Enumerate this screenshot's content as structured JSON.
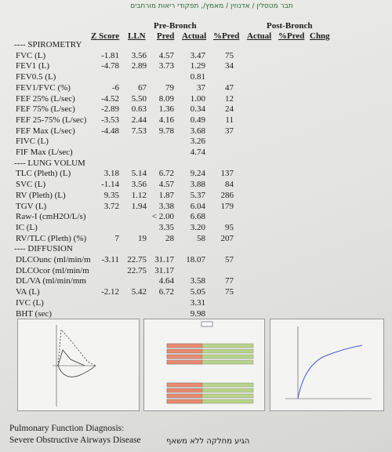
{
  "header": {
    "hebrew": "תבר מטסלין / אדנוזין / מאמץ/, תפקודי ריאות מורחבים"
  },
  "columns": {
    "pre_group": "Pre-Bronch",
    "post_group": "Post-Bronch",
    "pre": [
      "Z Score",
      "LLN",
      "Pred",
      "Actual",
      "%Pred"
    ],
    "post": [
      "Actual",
      "%Pred",
      "Chng"
    ]
  },
  "sections": [
    {
      "title": "---- SPIROMETRY",
      "rows": [
        {
          "label": "FVC (L)",
          "z": "-1.81",
          "lln": "3.56",
          "pred": "4.57",
          "actual": "3.47",
          "pct": "75"
        },
        {
          "label": "FEV1 (L)",
          "z": "-4.78",
          "lln": "2.89",
          "pred": "3.73",
          "actual": "1.29",
          "pct": "34"
        },
        {
          "label": "FEV0.5 (L)",
          "z": null,
          "lln": null,
          "pred": null,
          "actual": "0.81",
          "pct": null
        },
        {
          "label": "FEV1/FVC (%)",
          "z": "-6",
          "lln": "67",
          "pred": "79",
          "actual": "37",
          "pct": "47"
        },
        {
          "label": "FEF 25% (L/sec)",
          "z": "-4.52",
          "lln": "5.50",
          "pred": "8.09",
          "actual": "1.00",
          "pct": "12"
        },
        {
          "label": "FEF 75% (L/sec)",
          "z": "-2.89",
          "lln": "0.63",
          "pred": "1.36",
          "actual": "0.34",
          "pct": "24"
        },
        {
          "label": "FEF 25-75% (L/sec)",
          "z": "-3.53",
          "lln": "2.44",
          "pred": "4.16",
          "actual": "0.49",
          "pct": "11"
        },
        {
          "label": "FEF Max (L/sec)",
          "z": "-4.48",
          "lln": "7.53",
          "pred": "9.78",
          "actual": "3.68",
          "pct": "37"
        },
        {
          "label": "FIVC (L)",
          "z": null,
          "lln": null,
          "pred": null,
          "actual": "3.26",
          "pct": null
        },
        {
          "label": "FIF Max (L/sec)",
          "z": null,
          "lln": null,
          "pred": null,
          "actual": "4.74",
          "pct": null
        }
      ]
    },
    {
      "title": "---- LUNG VOLUM",
      "rows": [
        {
          "label": "TLC (Pleth) (L)",
          "z": "3.18",
          "lln": "5.14",
          "pred": "6.72",
          "actual": "9.24",
          "pct": "137"
        },
        {
          "label": "SVC (L)",
          "z": "-1.14",
          "lln": "3.56",
          "pred": "4.57",
          "actual": "3.88",
          "pct": "84"
        },
        {
          "label": "RV (Pleth) (L)",
          "z": "9.35",
          "lln": "1.12",
          "pred": "1.87",
          "actual": "5.37",
          "pct": "286"
        },
        {
          "label": "TGV (L)",
          "z": "3.72",
          "lln": "1.94",
          "pred": "3.38",
          "actual": "6.04",
          "pct": "179"
        },
        {
          "label": "Raw-I (cmH2O/L/s)",
          "z": null,
          "lln": null,
          "pred": "< 2.00",
          "actual": "6.68",
          "pct": null
        },
        {
          "label": "IC (L)",
          "z": null,
          "lln": null,
          "pred": "3.35",
          "actual": "3.20",
          "pct": "95"
        },
        {
          "label": "RV/TLC (Pleth) (%)",
          "z": "7",
          "lln": "19",
          "pred": "28",
          "actual": "58",
          "pct": "207"
        }
      ]
    },
    {
      "title": "---- DIFFUSION",
      "rows": [
        {
          "label": "DLCOunc (ml/min/m",
          "z": "-3.11",
          "lln": "22.75",
          "pred": "31.17",
          "actual": "18.07",
          "pct": "57"
        },
        {
          "label": "DLCOcor (ml/min/m",
          "z": null,
          "lln": "22.75",
          "pred": "31.17",
          "actual": null,
          "pct": null
        },
        {
          "label": "DL/VA (ml/min/mm",
          "z": null,
          "lln": null,
          "pred": "4.64",
          "actual": "3.58",
          "pct": "77"
        },
        {
          "label": "VA (L)",
          "z": "-2.12",
          "lln": "5.42",
          "pred": "6.72",
          "actual": "5.05",
          "pct": "75"
        },
        {
          "label": "IVC (L)",
          "z": null,
          "lln": null,
          "pred": null,
          "actual": "3.31",
          "pct": null
        },
        {
          "label": "BHT (sec)",
          "z": null,
          "lln": null,
          "pred": null,
          "actual": "9.98",
          "pct": null
        }
      ]
    }
  ],
  "footer": {
    "diagnosis_label": "Pulmonary Function Diagnosis:",
    "diagnosis": "Severe Obstructive Airways Disease",
    "note": "הגיע מחלקה ללא משאף"
  }
}
